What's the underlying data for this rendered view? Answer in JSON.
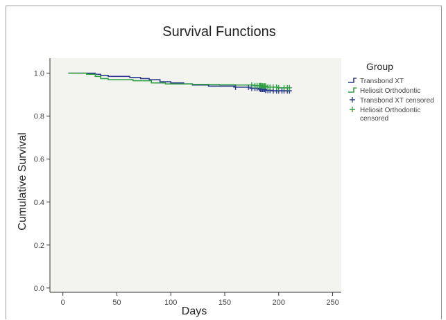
{
  "chart_data": {
    "type": "line",
    "title": "Survival Functions",
    "xlabel": "Days",
    "ylabel": "Cumulative Survival",
    "xlim": [
      -12,
      258
    ],
    "ylim": [
      -0.02,
      1.07
    ],
    "xticks": [
      0,
      50,
      100,
      150,
      200,
      250
    ],
    "yticks": [
      0.0,
      0.2,
      0.4,
      0.6,
      0.8,
      1.0
    ],
    "xtick_labels": [
      "0",
      "50",
      "100",
      "150",
      "200",
      "250"
    ],
    "ytick_labels": [
      "0.0",
      "0.2",
      "0.4",
      "0.6",
      "0.8",
      "1.0"
    ],
    "legend": {
      "title": "Group",
      "position": "right",
      "entries": [
        {
          "label": "Transbond XT",
          "kind": "line",
          "color": "#2b3a8c"
        },
        {
          "label": "Heliosit Orthodontic",
          "kind": "line",
          "color": "#2ea043"
        },
        {
          "label": "Transbond XT censored",
          "kind": "plus",
          "color": "#2b3a8c"
        },
        {
          "label": "Heliosit Orthodontic censored",
          "kind": "plus",
          "color": "#2ea043",
          "lines": [
            "Heliosit Orthodontic",
            "censored"
          ]
        }
      ]
    },
    "series": [
      {
        "name": "Transbond XT",
        "color": "#2b3a8c",
        "steps": [
          [
            5,
            1.0
          ],
          [
            30,
            0.995
          ],
          [
            35,
            0.99
          ],
          [
            42,
            0.985
          ],
          [
            62,
            0.98
          ],
          [
            72,
            0.975
          ],
          [
            80,
            0.97
          ],
          [
            90,
            0.96
          ],
          [
            100,
            0.955
          ],
          [
            112,
            0.95
          ],
          [
            120,
            0.945
          ],
          [
            135,
            0.94
          ],
          [
            160,
            0.935
          ],
          [
            175,
            0.93
          ],
          [
            183,
            0.925
          ],
          [
            188,
            0.92
          ],
          [
            195,
            0.918
          ],
          [
            211,
            0.918
          ]
        ],
        "censored_x": [
          160,
          172,
          175,
          178,
          180,
          182,
          183,
          184,
          185,
          186,
          187,
          188,
          190,
          192,
          195,
          198,
          200,
          203,
          205,
          208,
          210
        ]
      },
      {
        "name": "Heliosit Orthodontic",
        "color": "#2ea043",
        "steps": [
          [
            5,
            1.0
          ],
          [
            22,
            0.995
          ],
          [
            30,
            0.985
          ],
          [
            35,
            0.975
          ],
          [
            42,
            0.97
          ],
          [
            65,
            0.965
          ],
          [
            82,
            0.955
          ],
          [
            95,
            0.95
          ],
          [
            120,
            0.948
          ],
          [
            145,
            0.946
          ],
          [
            160,
            0.945
          ],
          [
            178,
            0.942
          ],
          [
            185,
            0.94
          ],
          [
            190,
            0.935
          ],
          [
            200,
            0.932
          ],
          [
            211,
            0.932
          ]
        ],
        "censored_x": [
          175,
          178,
          180,
          182,
          183,
          184,
          185,
          186,
          187,
          188,
          190,
          192,
          195,
          198,
          200,
          205,
          208,
          210
        ]
      }
    ]
  }
}
